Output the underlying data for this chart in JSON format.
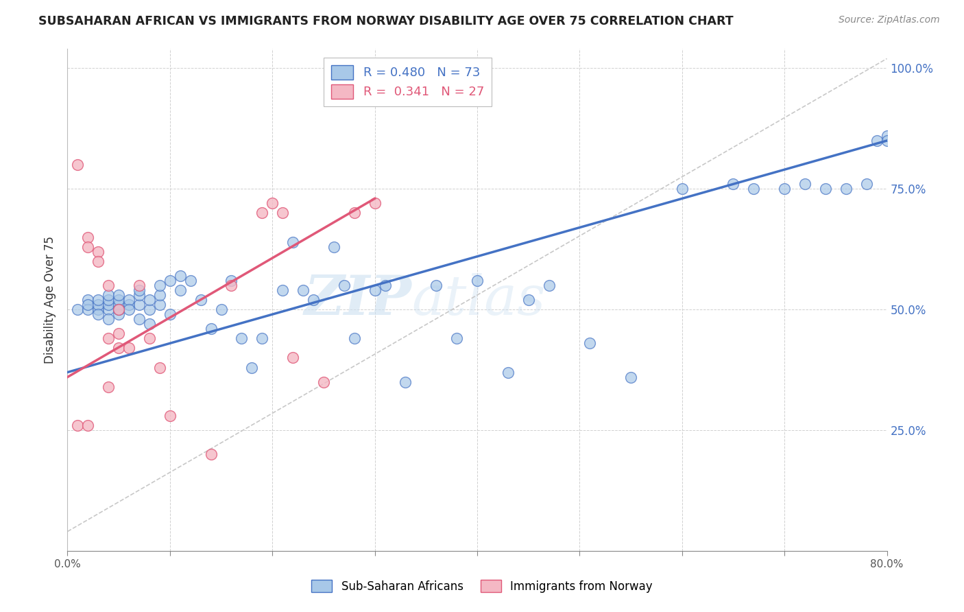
{
  "title": "SUBSAHARAN AFRICAN VS IMMIGRANTS FROM NORWAY DISABILITY AGE OVER 75 CORRELATION CHART",
  "source": "Source: ZipAtlas.com",
  "ylabel": "Disability Age Over 75",
  "x_min": 0.0,
  "x_max": 0.8,
  "y_min": 0.0,
  "y_max": 1.04,
  "y_ticks": [
    0.25,
    0.5,
    0.75,
    1.0
  ],
  "x_ticks": [
    0.0,
    0.1,
    0.2,
    0.3,
    0.4,
    0.5,
    0.6,
    0.7,
    0.8
  ],
  "x_tick_labels": [
    "0.0%",
    "",
    "",
    "",
    "",
    "",
    "",
    "",
    "80.0%"
  ],
  "y_tick_labels_right": [
    "25.0%",
    "50.0%",
    "75.0%",
    "100.0%"
  ],
  "legend1_label": "Sub-Saharan Africans",
  "legend2_label": "Immigrants from Norway",
  "R1": 0.48,
  "N1": 73,
  "R2": 0.341,
  "N2": 27,
  "color_blue": "#a8c8e8",
  "color_pink": "#f4b8c4",
  "line_color_blue": "#4472c4",
  "line_color_pink": "#e05878",
  "line_color_dashed": "#c8c8c8",
  "watermark_zip": "ZIP",
  "watermark_atlas": "atlas",
  "blue_points_x": [
    0.01,
    0.02,
    0.02,
    0.02,
    0.03,
    0.03,
    0.03,
    0.03,
    0.04,
    0.04,
    0.04,
    0.04,
    0.04,
    0.05,
    0.05,
    0.05,
    0.05,
    0.05,
    0.05,
    0.06,
    0.06,
    0.06,
    0.07,
    0.07,
    0.07,
    0.07,
    0.08,
    0.08,
    0.08,
    0.09,
    0.09,
    0.09,
    0.1,
    0.1,
    0.11,
    0.11,
    0.12,
    0.13,
    0.14,
    0.15,
    0.16,
    0.17,
    0.18,
    0.19,
    0.21,
    0.22,
    0.23,
    0.24,
    0.26,
    0.27,
    0.28,
    0.3,
    0.31,
    0.33,
    0.36,
    0.38,
    0.4,
    0.43,
    0.45,
    0.47,
    0.51,
    0.55,
    0.6,
    0.65,
    0.67,
    0.7,
    0.72,
    0.74,
    0.76,
    0.78,
    0.79,
    0.8,
    0.8
  ],
  "blue_points_y": [
    0.5,
    0.52,
    0.5,
    0.51,
    0.5,
    0.51,
    0.52,
    0.49,
    0.5,
    0.51,
    0.52,
    0.53,
    0.48,
    0.5,
    0.51,
    0.52,
    0.53,
    0.49,
    0.5,
    0.51,
    0.52,
    0.5,
    0.51,
    0.48,
    0.53,
    0.54,
    0.5,
    0.52,
    0.47,
    0.51,
    0.53,
    0.55,
    0.56,
    0.49,
    0.54,
    0.57,
    0.56,
    0.52,
    0.46,
    0.5,
    0.56,
    0.44,
    0.38,
    0.44,
    0.54,
    0.64,
    0.54,
    0.52,
    0.63,
    0.55,
    0.44,
    0.54,
    0.55,
    0.35,
    0.55,
    0.44,
    0.56,
    0.37,
    0.52,
    0.55,
    0.43,
    0.36,
    0.75,
    0.76,
    0.75,
    0.75,
    0.76,
    0.75,
    0.75,
    0.76,
    0.85,
    0.86,
    0.85
  ],
  "pink_points_x": [
    0.01,
    0.01,
    0.02,
    0.02,
    0.02,
    0.03,
    0.03,
    0.04,
    0.04,
    0.04,
    0.05,
    0.05,
    0.05,
    0.06,
    0.07,
    0.08,
    0.09,
    0.1,
    0.14,
    0.16,
    0.19,
    0.2,
    0.21,
    0.22,
    0.25,
    0.28,
    0.3
  ],
  "pink_points_y": [
    0.8,
    0.26,
    0.65,
    0.63,
    0.26,
    0.62,
    0.6,
    0.55,
    0.44,
    0.34,
    0.5,
    0.45,
    0.42,
    0.42,
    0.55,
    0.44,
    0.38,
    0.28,
    0.2,
    0.55,
    0.7,
    0.72,
    0.7,
    0.4,
    0.35,
    0.7,
    0.72
  ],
  "blue_line_x0": 0.0,
  "blue_line_x1": 0.8,
  "blue_line_y0": 0.37,
  "blue_line_y1": 0.85,
  "pink_line_x0": 0.0,
  "pink_line_x1": 0.3,
  "pink_line_y0": 0.36,
  "pink_line_y1": 0.73
}
